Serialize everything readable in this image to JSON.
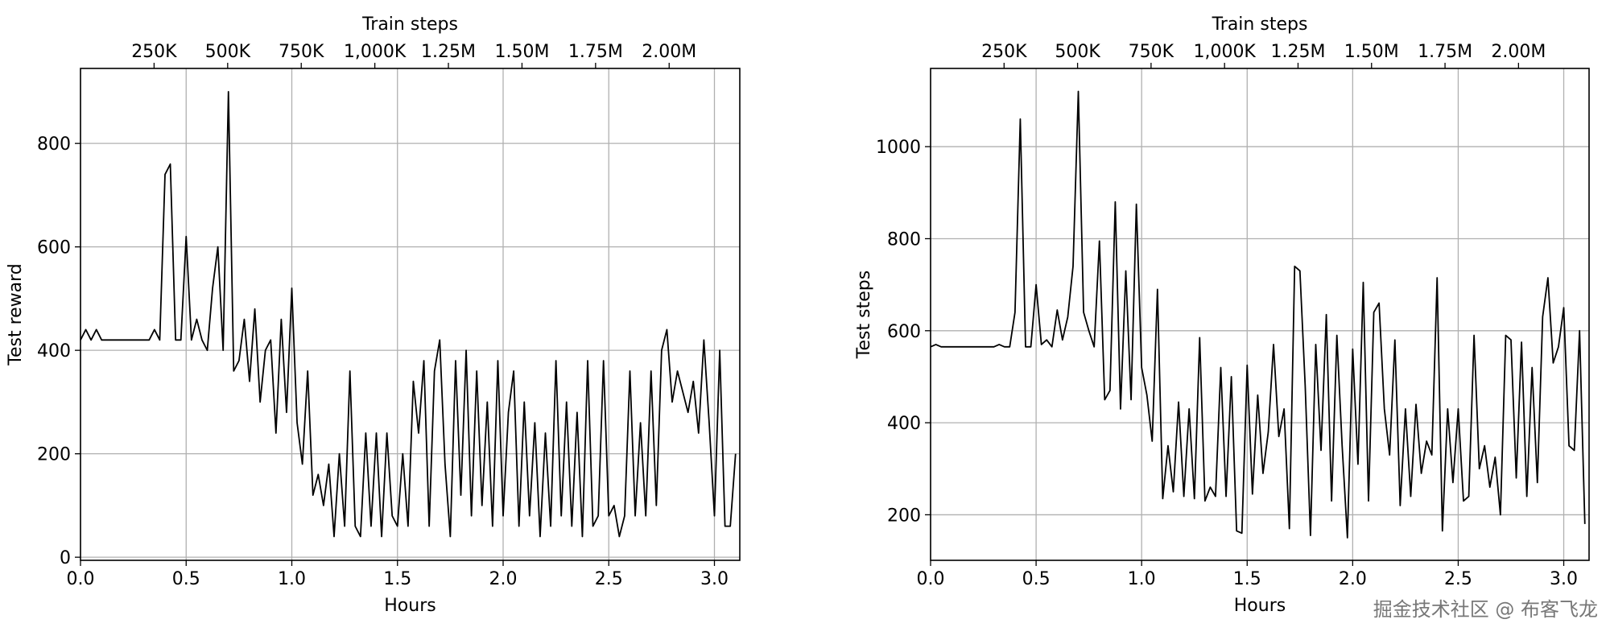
{
  "chart_data": [
    {
      "type": "line",
      "x_label": "Hours",
      "y_label": "Test reward",
      "x2_label": "Train steps",
      "color": "#000000",
      "grid": true,
      "xlim": [
        0,
        3.12
      ],
      "ylim": [
        -6,
        945
      ],
      "x2lim": [
        0,
        2240000
      ],
      "xticks": [
        {
          "value": 0,
          "label": "0.0"
        },
        0.5,
        {
          "value": 1,
          "label": "1.0"
        },
        1.5,
        {
          "value": 2,
          "label": "2.0"
        },
        2.5,
        {
          "value": 3,
          "label": "3.0"
        }
      ],
      "yticks": [
        0,
        200,
        400,
        600,
        800
      ],
      "x2ticks": [
        {
          "value": 250000,
          "label": "250K"
        },
        {
          "value": 500000,
          "label": "500K"
        },
        {
          "value": 750000,
          "label": "750K"
        },
        {
          "value": 1000000,
          "label": "1,000K"
        },
        {
          "value": 1250000,
          "label": "1.25M"
        },
        {
          "value": 1500000,
          "label": "1.50M"
        },
        {
          "value": 1750000,
          "label": "1.75M"
        },
        {
          "value": 2000000,
          "label": "2.00M"
        }
      ],
      "x": [
        0,
        0.025,
        0.05,
        0.075,
        0.1,
        0.125,
        0.15,
        0.175,
        0.2,
        0.225,
        0.25,
        0.275,
        0.3,
        0.325,
        0.35,
        0.375,
        0.4,
        0.425,
        0.45,
        0.475,
        0.5,
        0.525,
        0.55,
        0.575,
        0.6,
        0.625,
        0.65,
        0.675,
        0.7,
        0.725,
        0.75,
        0.775,
        0.8,
        0.825,
        0.85,
        0.875,
        0.9,
        0.925,
        0.95,
        0.975,
        1,
        1.025,
        1.05,
        1.075,
        1.1,
        1.125,
        1.15,
        1.175,
        1.2,
        1.225,
        1.25,
        1.275,
        1.3,
        1.325,
        1.35,
        1.375,
        1.4,
        1.425,
        1.45,
        1.475,
        1.5,
        1.525,
        1.55,
        1.575,
        1.6,
        1.625,
        1.65,
        1.675,
        1.7,
        1.725,
        1.75,
        1.775,
        1.8,
        1.825,
        1.85,
        1.875,
        1.9,
        1.925,
        1.95,
        1.975,
        2,
        2.025,
        2.05,
        2.075,
        2.1,
        2.125,
        2.15,
        2.175,
        2.2,
        2.225,
        2.25,
        2.275,
        2.3,
        2.325,
        2.35,
        2.375,
        2.4,
        2.425,
        2.45,
        2.475,
        2.5,
        2.525,
        2.55,
        2.575,
        2.6,
        2.625,
        2.65,
        2.675,
        2.7,
        2.725,
        2.75,
        2.775,
        2.8,
        2.825,
        2.85,
        2.875,
        2.9,
        2.925,
        2.95,
        2.975,
        3,
        3.025,
        3.05,
        3.075,
        3.1
      ],
      "values": [
        420,
        440,
        420,
        440,
        420,
        420,
        420,
        420,
        420,
        420,
        420,
        420,
        420,
        420,
        440,
        420,
        740,
        760,
        420,
        420,
        620,
        420,
        460,
        420,
        400,
        520,
        600,
        400,
        900,
        360,
        380,
        460,
        340,
        480,
        300,
        400,
        420,
        240,
        460,
        280,
        520,
        260,
        180,
        360,
        120,
        160,
        100,
        180,
        40,
        200,
        60,
        360,
        60,
        40,
        240,
        60,
        240,
        40,
        240,
        80,
        60,
        200,
        60,
        340,
        240,
        380,
        60,
        360,
        420,
        180,
        40,
        380,
        120,
        400,
        80,
        360,
        100,
        300,
        60,
        380,
        80,
        280,
        360,
        60,
        300,
        80,
        260,
        40,
        240,
        60,
        380,
        80,
        300,
        60,
        280,
        40,
        380,
        60,
        80,
        380,
        80,
        100,
        40,
        80,
        360,
        80,
        260,
        80,
        360,
        100,
        400,
        440,
        300,
        360,
        320,
        280,
        340,
        240,
        420,
        260,
        80,
        400,
        60,
        60,
        200
      ]
    },
    {
      "type": "line",
      "x_label": "Hours",
      "y_label": "Test steps",
      "x2_label": "Train steps",
      "color": "#000000",
      "grid": true,
      "xlim": [
        0,
        3.12
      ],
      "ylim": [
        101,
        1170
      ],
      "x2lim": [
        0,
        2240000
      ],
      "xticks": [
        {
          "value": 0,
          "label": "0.0"
        },
        0.5,
        {
          "value": 1,
          "label": "1.0"
        },
        1.5,
        {
          "value": 2,
          "label": "2.0"
        },
        2.5,
        {
          "value": 3,
          "label": "3.0"
        }
      ],
      "yticks": [
        200,
        400,
        600,
        800,
        1000
      ],
      "x2ticks": [
        {
          "value": 250000,
          "label": "250K"
        },
        {
          "value": 500000,
          "label": "500K"
        },
        {
          "value": 750000,
          "label": "750K"
        },
        {
          "value": 1000000,
          "label": "1,000K"
        },
        {
          "value": 1250000,
          "label": "1.25M"
        },
        {
          "value": 1500000,
          "label": "1.50M"
        },
        {
          "value": 1750000,
          "label": "1.75M"
        },
        {
          "value": 2000000,
          "label": "2.00M"
        }
      ],
      "x": [
        0,
        0.025,
        0.05,
        0.075,
        0.1,
        0.125,
        0.15,
        0.175,
        0.2,
        0.225,
        0.25,
        0.275,
        0.3,
        0.325,
        0.35,
        0.375,
        0.4,
        0.425,
        0.45,
        0.475,
        0.5,
        0.525,
        0.55,
        0.575,
        0.6,
        0.625,
        0.65,
        0.675,
        0.7,
        0.725,
        0.75,
        0.775,
        0.8,
        0.825,
        0.85,
        0.875,
        0.9,
        0.925,
        0.95,
        0.975,
        1,
        1.025,
        1.05,
        1.075,
        1.1,
        1.125,
        1.15,
        1.175,
        1.2,
        1.225,
        1.25,
        1.275,
        1.3,
        1.325,
        1.35,
        1.375,
        1.4,
        1.425,
        1.45,
        1.475,
        1.5,
        1.525,
        1.55,
        1.575,
        1.6,
        1.625,
        1.65,
        1.675,
        1.7,
        1.725,
        1.75,
        1.775,
        1.8,
        1.825,
        1.85,
        1.875,
        1.9,
        1.925,
        1.95,
        1.975,
        2,
        2.025,
        2.05,
        2.075,
        2.1,
        2.125,
        2.15,
        2.175,
        2.2,
        2.225,
        2.25,
        2.275,
        2.3,
        2.325,
        2.35,
        2.375,
        2.4,
        2.425,
        2.45,
        2.475,
        2.5,
        2.525,
        2.55,
        2.575,
        2.6,
        2.625,
        2.65,
        2.675,
        2.7,
        2.725,
        2.75,
        2.775,
        2.8,
        2.825,
        2.85,
        2.875,
        2.9,
        2.925,
        2.95,
        2.975,
        3,
        3.025,
        3.05,
        3.075,
        3.1
      ],
      "values": [
        565,
        570,
        565,
        565,
        565,
        565,
        565,
        565,
        565,
        565,
        565,
        565,
        565,
        570,
        565,
        565,
        640,
        1060,
        565,
        565,
        700,
        570,
        580,
        565,
        645,
        580,
        630,
        740,
        1120,
        640,
        600,
        565,
        795,
        450,
        470,
        880,
        430,
        730,
        450,
        875,
        520,
        460,
        360,
        690,
        235,
        350,
        250,
        445,
        240,
        430,
        235,
        585,
        230,
        260,
        240,
        520,
        240,
        500,
        165,
        160,
        525,
        245,
        460,
        290,
        380,
        570,
        370,
        430,
        170,
        740,
        730,
        480,
        155,
        570,
        340,
        635,
        230,
        590,
        350,
        150,
        560,
        310,
        705,
        230,
        640,
        660,
        430,
        330,
        580,
        220,
        430,
        240,
        440,
        290,
        360,
        330,
        715,
        165,
        430,
        270,
        430,
        230,
        240,
        590,
        300,
        350,
        260,
        325,
        200,
        590,
        580,
        280,
        575,
        240,
        520,
        270,
        630,
        715,
        530,
        565,
        650,
        350,
        340,
        600,
        180
      ]
    }
  ],
  "watermark": "掘金技术社区 @ 布客飞龙"
}
